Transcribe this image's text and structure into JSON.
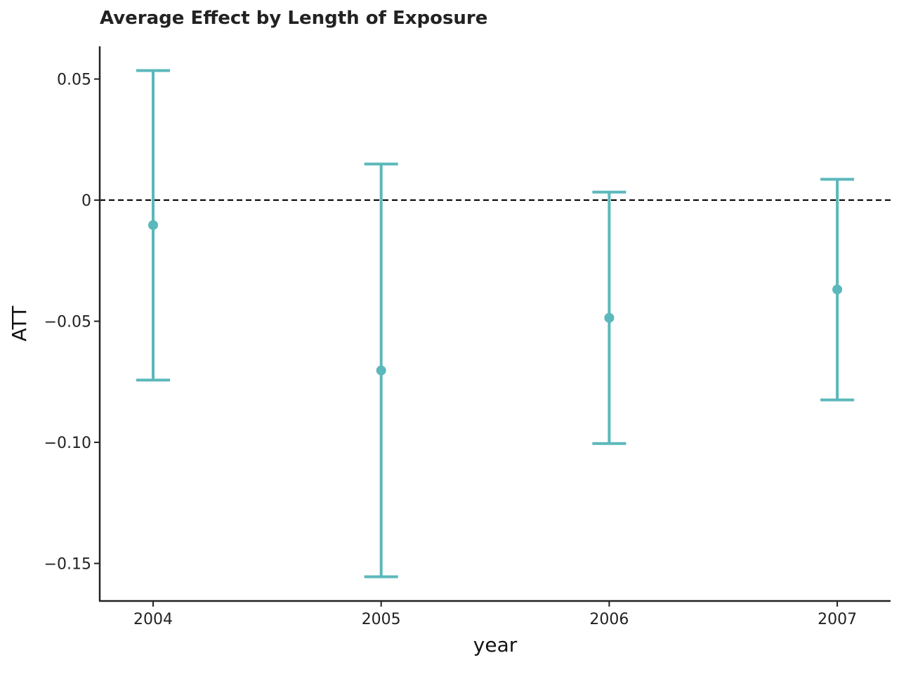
{
  "chart_data": {
    "type": "errorbar",
    "title": "Average Effect by Length of Exposure",
    "xlabel": "year",
    "ylabel": "ATT",
    "categories": [
      "2004",
      "2005",
      "2006",
      "2007"
    ],
    "estimate": [
      -0.0103,
      -0.0703,
      -0.0486,
      -0.0369
    ],
    "ci_lower": [
      -0.0743,
      -0.1555,
      -0.1005,
      -0.0825
    ],
    "ci_upper": [
      0.0535,
      0.0149,
      0.0033,
      0.0086
    ],
    "ylim": [
      -0.1655,
      0.0635
    ],
    "yticks": [
      0.05,
      0,
      -0.05,
      -0.1,
      -0.15
    ],
    "ytick_labels": [
      "0.05",
      "0",
      "−0.05",
      "−0.10",
      "−0.15"
    ],
    "reference_line": 0,
    "grid": false,
    "color": "#5bb8bb"
  }
}
